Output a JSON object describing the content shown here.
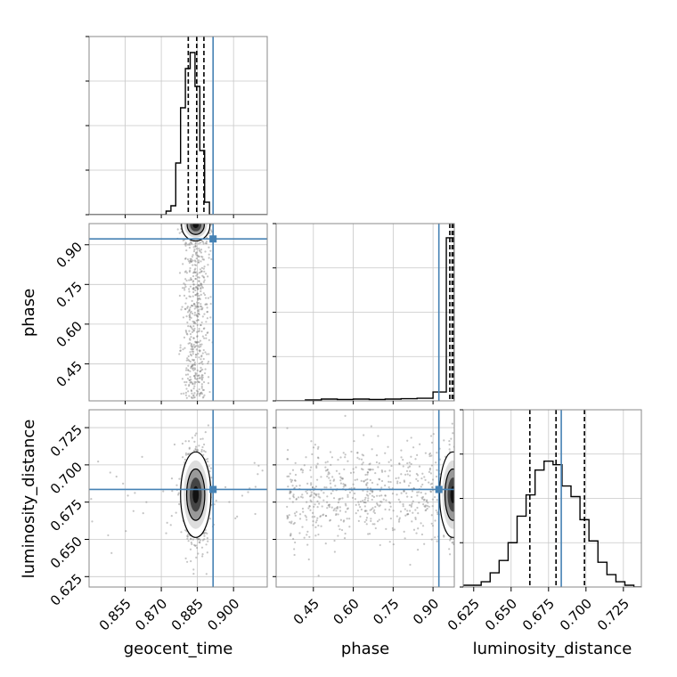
{
  "chart_data": {
    "type": "corner",
    "parameters": [
      {
        "name": "geocent_time",
        "label": "geocent_time",
        "range": [
          0.84,
          0.914
        ],
        "ticks": [
          "0.855",
          "0.870",
          "0.885",
          "0.900"
        ],
        "tick_values": [
          0.855,
          0.87,
          0.885,
          0.9
        ]
      },
      {
        "name": "phase",
        "label": "phase",
        "range": [
          0.31,
          0.98
        ],
        "ticks": [
          "0.45",
          "0.60",
          "0.75",
          "0.90"
        ],
        "tick_values": [
          0.45,
          0.6,
          0.75,
          0.9
        ]
      },
      {
        "name": "luminosity_distance",
        "label": "luminosity_distance",
        "range": [
          0.618,
          0.737
        ],
        "ticks": [
          "0.625",
          "0.650",
          "0.675",
          "0.700",
          "0.725"
        ],
        "tick_values": [
          0.625,
          0.65,
          0.675,
          0.7,
          0.725
        ]
      }
    ],
    "truths": {
      "geocent_time": 0.8915,
      "phase": 0.922,
      "luminosity_distance": 0.6835
    },
    "quantiles": {
      "geocent_time": [
        0.8812,
        0.8847,
        0.8877
      ],
      "phase": [
        0.963,
        0.972,
        0.978
      ],
      "luminosity_distance": [
        0.6625,
        0.68,
        0.699
      ]
    },
    "histograms": {
      "geocent_time": {
        "bin_edges": [
          0.872,
          0.874,
          0.876,
          0.878,
          0.88,
          0.882,
          0.884,
          0.886,
          0.888,
          0.89,
          0.892
        ],
        "counts": [
          0.02,
          0.05,
          0.29,
          0.6,
          0.82,
          0.91,
          0.72,
          0.36,
          0.07,
          0.0
        ]
      },
      "phase": {
        "bin_edges": [
          0.36,
          0.42,
          0.48,
          0.54,
          0.6,
          0.66,
          0.72,
          0.78,
          0.84,
          0.9,
          0.95,
          0.98
        ],
        "counts": [
          0.0,
          0.005,
          0.01,
          0.008,
          0.01,
          0.008,
          0.01,
          0.012,
          0.015,
          0.05,
          0.92
        ]
      },
      "luminosity_distance": {
        "bin_edges": [
          0.618,
          0.624,
          0.63,
          0.636,
          0.642,
          0.648,
          0.654,
          0.66,
          0.666,
          0.672,
          0.678,
          0.684,
          0.69,
          0.696,
          0.702,
          0.708,
          0.714,
          0.72,
          0.726,
          0.732,
          0.737
        ],
        "counts": [
          0.01,
          0.01,
          0.03,
          0.08,
          0.15,
          0.25,
          0.4,
          0.52,
          0.66,
          0.71,
          0.69,
          0.57,
          0.51,
          0.38,
          0.26,
          0.14,
          0.07,
          0.03,
          0.01,
          0.0
        ]
      }
    },
    "scatter_center": {
      "geocent_time": 0.8843,
      "phase": 0.965,
      "luminosity_distance": 0.68
    },
    "colors": {
      "truth": "#4682b4",
      "hist": "#000000",
      "scatter": "#7f7f7f",
      "grid": "#c8c8c8"
    },
    "grid": true
  }
}
